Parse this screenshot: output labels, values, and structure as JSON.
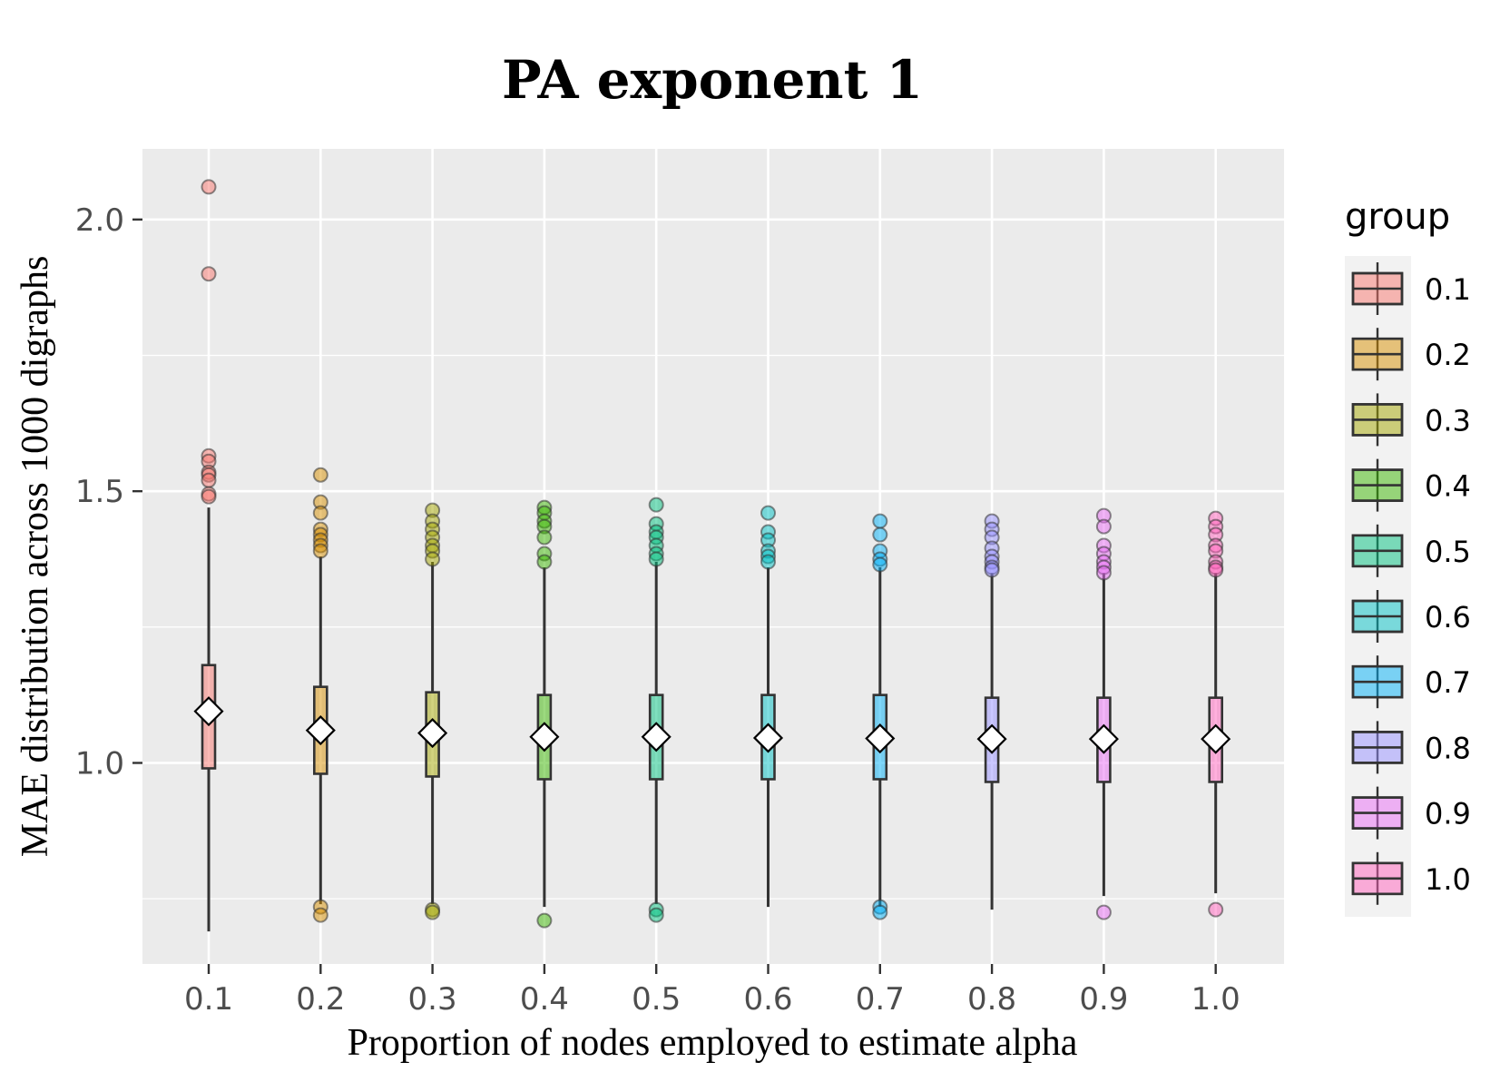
{
  "chart_data": {
    "type": "boxplot",
    "title": "PA exponent 1",
    "xlabel": "Proportion of nodes employed to estimate alpha",
    "ylabel": "MAE distribution across 1000 digraphs",
    "ylim": [
      0.63,
      2.13
    ],
    "yticks": [
      1.0,
      1.5,
      2.0
    ],
    "ytick_labels": [
      "1.0",
      "1.5",
      "2.0"
    ],
    "categories": [
      "0.1",
      "0.2",
      "0.3",
      "0.4",
      "0.5",
      "0.6",
      "0.7",
      "0.8",
      "0.9",
      "1.0"
    ],
    "legend": {
      "title": "group",
      "position": "right"
    },
    "colors": [
      "#F8766D",
      "#D89000",
      "#A3A500",
      "#39B600",
      "#00BF7D",
      "#00BFC4",
      "#00B0F6",
      "#9590FF",
      "#E76BF3",
      "#FF62BC"
    ],
    "boxes": [
      {
        "group": "0.1",
        "whisker_low": 0.69,
        "q1": 0.99,
        "median": 1.09,
        "q3": 1.18,
        "whisker_high": 1.47,
        "mean": 1.095,
        "outliers": [
          2.06,
          1.9,
          1.565,
          1.555,
          1.535,
          1.53,
          1.52,
          1.495,
          1.49
        ]
      },
      {
        "group": "0.2",
        "whisker_low": 0.74,
        "q1": 0.98,
        "median": 1.06,
        "q3": 1.14,
        "whisker_high": 1.38,
        "mean": 1.06,
        "outliers": [
          1.53,
          1.48,
          1.46,
          1.43,
          1.42,
          1.41,
          1.4,
          1.39,
          0.735,
          0.72
        ]
      },
      {
        "group": "0.3",
        "whisker_low": 0.74,
        "q1": 0.975,
        "median": 1.05,
        "q3": 1.13,
        "whisker_high": 1.37,
        "mean": 1.055,
        "outliers": [
          1.465,
          1.445,
          1.43,
          1.415,
          1.4,
          1.39,
          1.375,
          0.73,
          0.725
        ]
      },
      {
        "group": "0.4",
        "whisker_low": 0.735,
        "q1": 0.97,
        "median": 1.045,
        "q3": 1.125,
        "whisker_high": 1.36,
        "mean": 1.048,
        "outliers": [
          1.47,
          1.46,
          1.445,
          1.435,
          1.415,
          1.385,
          1.37,
          0.71
        ]
      },
      {
        "group": "0.5",
        "whisker_low": 0.74,
        "q1": 0.97,
        "median": 1.045,
        "q3": 1.125,
        "whisker_high": 1.37,
        "mean": 1.048,
        "outliers": [
          1.475,
          1.44,
          1.425,
          1.415,
          1.4,
          1.385,
          1.375,
          0.73,
          0.72
        ]
      },
      {
        "group": "0.6",
        "whisker_low": 0.735,
        "q1": 0.97,
        "median": 1.045,
        "q3": 1.125,
        "whisker_high": 1.36,
        "mean": 1.046,
        "outliers": [
          1.46,
          1.425,
          1.41,
          1.39,
          1.38,
          1.37
        ]
      },
      {
        "group": "0.7",
        "whisker_low": 0.735,
        "q1": 0.97,
        "median": 1.045,
        "q3": 1.125,
        "whisker_high": 1.36,
        "mean": 1.045,
        "outliers": [
          1.445,
          1.42,
          1.39,
          1.375,
          1.365,
          0.735,
          0.725
        ]
      },
      {
        "group": "0.8",
        "whisker_low": 0.73,
        "q1": 0.965,
        "median": 1.04,
        "q3": 1.12,
        "whisker_high": 1.35,
        "mean": 1.044,
        "outliers": [
          1.445,
          1.43,
          1.415,
          1.395,
          1.38,
          1.37,
          1.36,
          1.355
        ]
      },
      {
        "group": "0.9",
        "whisker_low": 0.755,
        "q1": 0.965,
        "median": 1.04,
        "q3": 1.12,
        "whisker_high": 1.35,
        "mean": 1.044,
        "outliers": [
          1.455,
          1.435,
          1.4,
          1.385,
          1.37,
          1.36,
          1.35,
          0.725
        ]
      },
      {
        "group": "1.0",
        "whisker_low": 0.76,
        "q1": 0.965,
        "median": 1.04,
        "q3": 1.12,
        "whisker_high": 1.35,
        "mean": 1.044,
        "outliers": [
          1.45,
          1.435,
          1.42,
          1.4,
          1.39,
          1.37,
          1.36,
          1.355,
          0.73
        ]
      }
    ]
  }
}
